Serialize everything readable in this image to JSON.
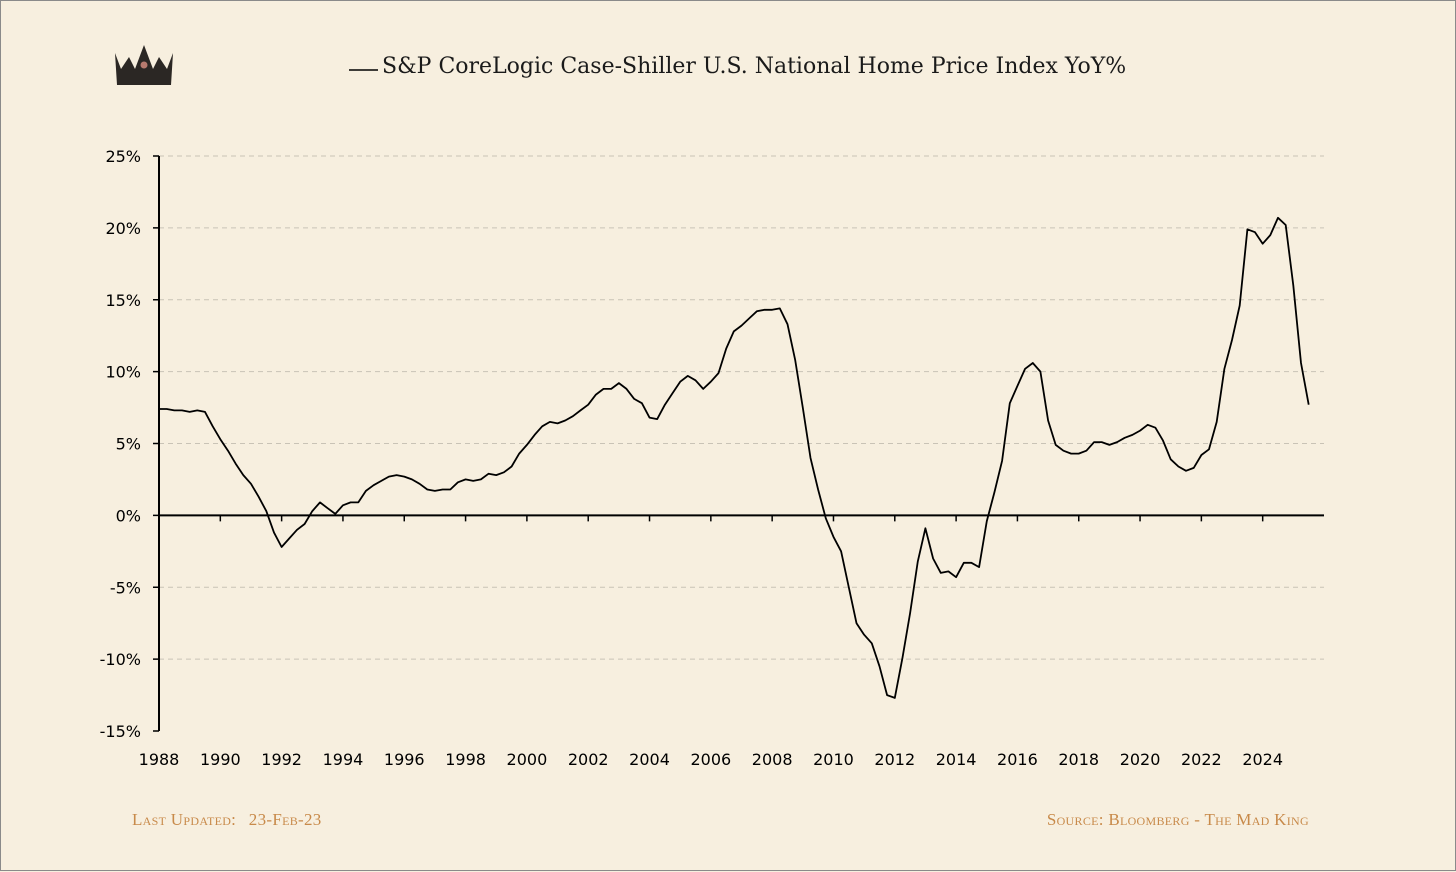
{
  "chart_data": {
    "type": "line",
    "title": "S&P CoreLogic Case-Shiller U.S. National Home Price Index YoY%",
    "xlabel": "",
    "ylabel": "",
    "xlim": [
      1988,
      2026
    ],
    "ylim": [
      -15,
      25
    ],
    "x_ticks": [
      "1988",
      "1990",
      "1992",
      "1994",
      "1996",
      "1998",
      "2000",
      "2002",
      "2004",
      "2006",
      "2008",
      "2010",
      "2012",
      "2014",
      "2016",
      "2018",
      "2020",
      "2022",
      "2024"
    ],
    "y_ticks": [
      "25%",
      "20%",
      "15%",
      "10%",
      "5%",
      "0%",
      "-5%",
      "-10%",
      "-15%"
    ],
    "grid": true,
    "legend": "top-center",
    "series": [
      {
        "name": "S&P CoreLogic Case-Shiller U.S. National Home Price Index YoY%",
        "color": "#000000",
        "points": [
          [
            1988.0,
            7.4
          ],
          [
            1988.25,
            7.4
          ],
          [
            1988.5,
            7.3
          ],
          [
            1988.75,
            7.3
          ],
          [
            1989.0,
            7.2
          ],
          [
            1989.25,
            7.3
          ],
          [
            1989.5,
            7.2
          ],
          [
            1989.75,
            6.2
          ],
          [
            1990.0,
            5.3
          ],
          [
            1990.25,
            4.5
          ],
          [
            1990.5,
            3.6
          ],
          [
            1990.75,
            2.8
          ],
          [
            1991.0,
            2.2
          ],
          [
            1991.25,
            1.3
          ],
          [
            1991.5,
            0.3
          ],
          [
            1991.75,
            -1.2
          ],
          [
            1992.0,
            -2.2
          ],
          [
            1992.25,
            -1.6
          ],
          [
            1992.5,
            -1.0
          ],
          [
            1992.75,
            -0.6
          ],
          [
            1993.0,
            0.3
          ],
          [
            1993.25,
            0.9
          ],
          [
            1993.5,
            0.5
          ],
          [
            1993.75,
            0.1
          ],
          [
            1994.0,
            0.7
          ],
          [
            1994.25,
            0.9
          ],
          [
            1994.5,
            0.9
          ],
          [
            1994.75,
            1.7
          ],
          [
            1995.0,
            2.1
          ],
          [
            1995.25,
            2.4
          ],
          [
            1995.5,
            2.7
          ],
          [
            1995.75,
            2.8
          ],
          [
            1996.0,
            2.7
          ],
          [
            1996.25,
            2.5
          ],
          [
            1996.5,
            2.2
          ],
          [
            1996.75,
            1.8
          ],
          [
            1997.0,
            1.7
          ],
          [
            1997.25,
            1.8
          ],
          [
            1997.5,
            1.8
          ],
          [
            1997.75,
            2.3
          ],
          [
            1998.0,
            2.5
          ],
          [
            1998.25,
            2.4
          ],
          [
            1998.5,
            2.5
          ],
          [
            1998.75,
            2.9
          ],
          [
            1999.0,
            2.8
          ],
          [
            1999.25,
            3.0
          ],
          [
            1999.5,
            3.4
          ],
          [
            1999.75,
            4.3
          ],
          [
            2000.0,
            4.9
          ],
          [
            2000.25,
            5.6
          ],
          [
            2000.5,
            6.2
          ],
          [
            2000.75,
            6.5
          ],
          [
            2001.0,
            6.4
          ],
          [
            2001.25,
            6.6
          ],
          [
            2001.5,
            6.9
          ],
          [
            2001.75,
            7.3
          ],
          [
            2002.0,
            7.7
          ],
          [
            2002.25,
            8.4
          ],
          [
            2002.5,
            8.8
          ],
          [
            2002.75,
            8.8
          ],
          [
            2003.0,
            9.2
          ],
          [
            2003.25,
            8.8
          ],
          [
            2003.5,
            8.1
          ],
          [
            2003.75,
            7.8
          ],
          [
            2004.0,
            6.8
          ],
          [
            2004.25,
            6.7
          ],
          [
            2004.5,
            7.7
          ],
          [
            2004.75,
            8.5
          ],
          [
            2005.0,
            9.3
          ],
          [
            2005.25,
            9.7
          ],
          [
            2005.5,
            9.4
          ],
          [
            2005.75,
            8.8
          ],
          [
            2006.0,
            9.3
          ],
          [
            2006.25,
            9.9
          ],
          [
            2006.5,
            11.6
          ],
          [
            2006.75,
            12.8
          ],
          [
            2007.0,
            13.2
          ],
          [
            2007.25,
            13.7
          ],
          [
            2007.5,
            14.2
          ],
          [
            2007.75,
            14.3
          ],
          [
            2008.0,
            14.3
          ],
          [
            2008.25,
            14.4
          ],
          [
            2008.5,
            13.3
          ],
          [
            2008.75,
            10.8
          ],
          [
            2009.0,
            7.5
          ],
          [
            2009.25,
            4.0
          ],
          [
            2009.5,
            1.8
          ],
          [
            2009.75,
            -0.2
          ],
          [
            2010.0,
            -1.5
          ],
          [
            2010.25,
            -2.5
          ],
          [
            2010.5,
            -5.0
          ],
          [
            2010.75,
            -7.5
          ],
          [
            2011.0,
            -8.3
          ],
          [
            2011.25,
            -8.9
          ],
          [
            2011.5,
            -10.5
          ],
          [
            2011.75,
            -12.5
          ],
          [
            2012.0,
            -12.7
          ],
          [
            2012.25,
            -9.9
          ],
          [
            2012.5,
            -6.8
          ],
          [
            2012.75,
            -3.2
          ],
          [
            2013.0,
            -0.9
          ],
          [
            2013.25,
            -3.0
          ],
          [
            2013.5,
            -4.0
          ],
          [
            2013.75,
            -3.9
          ],
          [
            2014.0,
            -4.3
          ],
          [
            2014.25,
            -3.3
          ],
          [
            2014.5,
            -3.3
          ],
          [
            2014.75,
            -3.6
          ],
          [
            2015.0,
            -0.4
          ],
          [
            2015.25,
            1.6
          ],
          [
            2015.5,
            3.8
          ],
          [
            2015.75,
            7.8
          ],
          [
            2016.0,
            9.0
          ],
          [
            2016.25,
            10.2
          ],
          [
            2016.5,
            10.6
          ],
          [
            2016.75,
            10.0
          ],
          [
            2017.0,
            6.6
          ],
          [
            2017.25,
            4.9
          ],
          [
            2017.5,
            4.5
          ],
          [
            2017.75,
            4.3
          ],
          [
            2018.0,
            4.3
          ],
          [
            2018.25,
            4.5
          ],
          [
            2018.5,
            5.1
          ],
          [
            2018.75,
            5.1
          ],
          [
            2019.0,
            4.9
          ],
          [
            2019.25,
            5.1
          ],
          [
            2019.5,
            5.4
          ],
          [
            2019.75,
            5.6
          ],
          [
            2020.0,
            5.9
          ],
          [
            2020.25,
            6.3
          ],
          [
            2020.5,
            6.1
          ],
          [
            2020.75,
            5.2
          ],
          [
            2021.0,
            3.9
          ],
          [
            2021.25,
            3.4
          ],
          [
            2021.5,
            3.1
          ],
          [
            2021.75,
            3.3
          ],
          [
            2022.0,
            4.2
          ],
          [
            2022.25,
            4.6
          ],
          [
            2022.5,
            6.5
          ],
          [
            2022.75,
            10.2
          ],
          [
            2023.0,
            12.2
          ],
          [
            2023.25,
            14.6
          ],
          [
            2023.5,
            19.9
          ],
          [
            2023.75,
            19.7
          ],
          [
            2024.0,
            18.9
          ],
          [
            2024.25,
            19.5
          ],
          [
            2024.5,
            20.7
          ],
          [
            2024.75,
            20.2
          ],
          [
            2025.0,
            16.0
          ],
          [
            2025.25,
            10.6
          ],
          [
            2025.5,
            7.7
          ]
        ]
      }
    ]
  },
  "footer": {
    "last_updated_label": "Last Updated:",
    "last_updated_value": "23-Feb-23",
    "source": "Source: Bloomberg - The Mad King"
  },
  "logo": {
    "icon": "crown-icon",
    "color": "#2b2724",
    "jewel": "#b77a6e"
  },
  "colors": {
    "background": "#f7efdf",
    "grid": "#c9c3b6",
    "footer_text": "#c88a4a",
    "line": "#000000"
  }
}
